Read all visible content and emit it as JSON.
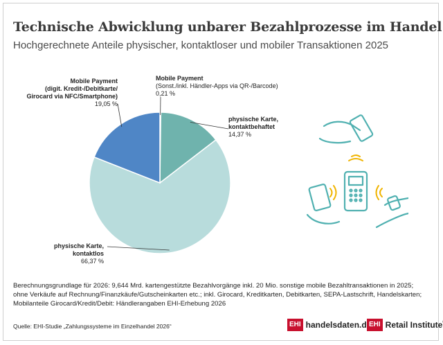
{
  "title": "Technische Abwicklung unbarer Bezahlprozesse im Handel",
  "subtitle": "Hochgerechnete Anteile physischer, kontaktloser und mobiler Transaktionen 2025",
  "chart_data": {
    "type": "pie",
    "slices": [
      {
        "name": "Mobile Payment",
        "detail": [
          "(Sonst./inkl. Händler-Apps via QR-/Barcode)"
        ],
        "value": 0.21,
        "value_label": "0,21 %",
        "color": "#1f4f8a"
      },
      {
        "name": "physische Karte,",
        "detail": [
          "kontaktbehaftet"
        ],
        "value": 14.37,
        "value_label": "14,37 %",
        "color": "#6fb3ad"
      },
      {
        "name": "physische Karte,",
        "detail": [
          "kontaktlos"
        ],
        "value": 66.37,
        "value_label": "66,37 %",
        "color": "#b8dcdc"
      },
      {
        "name": "Mobile Payment",
        "detail": [
          "(digit. Kredit-/Debitkarte/",
          "Girocard via NFC/Smartphone)"
        ],
        "value": 19.05,
        "value_label": "19,05 %",
        "color": "#4f86c6"
      }
    ]
  },
  "basis_lines": [
    "Berechnungsgrundlage für 2026: 9,644 Mrd. kartengestützte Bezahlvorgänge inkl. 20 Mio. sonstige mobile Bezahltransaktionen in 2025;",
    "ohne Verkäufe auf Rechnung/Finanzkäufe/Gutscheinkarten etc.; inkl. Girocard, Kreditkarten, Debitkarten, SEPA-Lastschrift, Handelskarten;",
    "Mobilanteile Girocard/Kredit/Debit: Händlerangaben EHI-Erhebung 2026"
  ],
  "source": "Quelle: EHI-Studie „Zahlungssysteme im Einzelhandel 2026“",
  "logos": {
    "ehi_mark": "EHI",
    "site": "handelsdaten.de",
    "institute": "Retail Institute",
    "reg": "®"
  },
  "colors": {
    "accent": "#c8102e",
    "illustration": "#4fb0b0",
    "contactless_waves": "#f0b400"
  }
}
